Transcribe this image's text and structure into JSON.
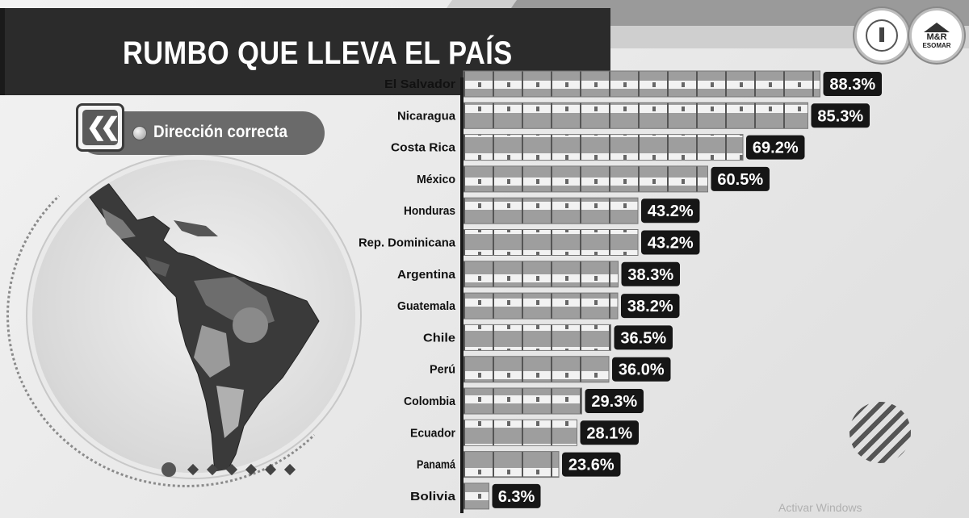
{
  "header": {
    "title": "RUMBO QUE LLEVA EL PAÍS"
  },
  "legend": {
    "label": "Dirección correcta",
    "icon": "double-chevron-left-icon"
  },
  "watermark": "Activar Windows",
  "logos": [
    {
      "icon": "lighthouse-seal-icon"
    },
    {
      "line1": "M&R",
      "line2": "ESOMAR"
    }
  ],
  "chart_data": {
    "type": "bar",
    "orientation": "horizontal",
    "categories": [
      "El Salvador",
      "Nicaragua",
      "Costa Rica",
      "México",
      "Honduras",
      "Rep. Dominicana",
      "Argentina",
      "Guatemala",
      "Chile",
      "Perú",
      "Colombia",
      "Ecuador",
      "Panamá",
      "Bolivia"
    ],
    "values": [
      88.3,
      85.3,
      69.2,
      60.5,
      43.2,
      43.2,
      38.3,
      38.2,
      36.5,
      36.0,
      29.3,
      28.1,
      23.6,
      6.3
    ],
    "value_labels": [
      "88.3%",
      "85.3%",
      "69.2%",
      "60.5%",
      "43.2%",
      "43.2%",
      "38.3%",
      "38.2%",
      "36.5%",
      "36.0%",
      "29.3%",
      "28.1%",
      "23.6%",
      "6.3%"
    ],
    "unit": "%",
    "xlim": [
      0,
      100
    ],
    "grid": false,
    "legend_position": "top-left"
  }
}
